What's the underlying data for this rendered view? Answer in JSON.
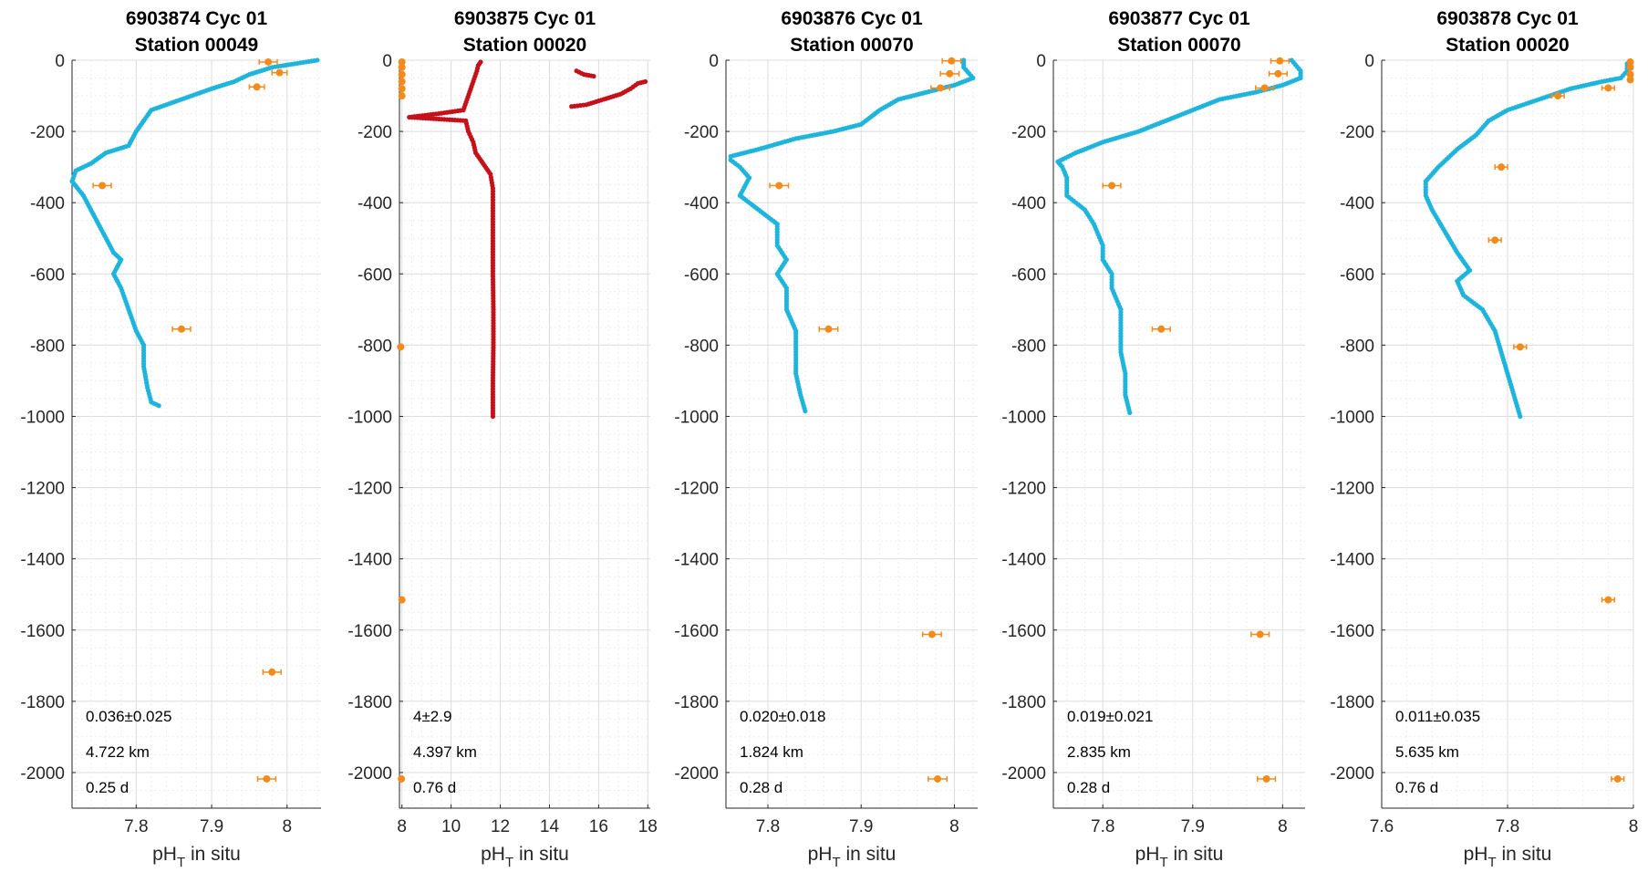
{
  "chart_data": [
    {
      "type": "scatter",
      "title_line1": "6903874 Cyc 01",
      "title_line2": "Station 00049",
      "xlabel_main": "pH",
      "xlabel_sub": "T",
      "xlabel_rest": " in situ",
      "xlim": [
        7.715,
        8.045
      ],
      "ylim": [
        -2100,
        0
      ],
      "xticks": [
        7.8,
        7.9,
        8
      ],
      "xtick_labels": [
        "7.8",
        "7.9",
        "8"
      ],
      "yticks": [
        0,
        -200,
        -400,
        -600,
        -800,
        -1000,
        -1200,
        -1400,
        -1600,
        -1800,
        -2000
      ],
      "ytick_labels": [
        "0",
        "-200",
        "-400",
        "-600",
        "-800",
        "-1000",
        "-1200",
        "-1400",
        "-1600",
        "-1800",
        "-2000"
      ],
      "grid": true,
      "annotations": [
        "0.036±0.025",
        "4.722 km",
        "0.25 d"
      ],
      "profile_color": "#1fb4dc",
      "profile": [
        [
          8.04,
          0
        ],
        [
          8.01,
          -10
        ],
        [
          7.98,
          -20
        ],
        [
          7.95,
          -40
        ],
        [
          7.93,
          -60
        ],
        [
          7.9,
          -80
        ],
        [
          7.86,
          -110
        ],
        [
          7.82,
          -140
        ],
        [
          7.81,
          -170
        ],
        [
          7.8,
          -200
        ],
        [
          7.79,
          -240
        ],
        [
          7.76,
          -260
        ],
        [
          7.74,
          -290
        ],
        [
          7.72,
          -310
        ],
        [
          7.715,
          -340
        ],
        [
          7.73,
          -380
        ],
        [
          7.74,
          -420
        ],
        [
          7.75,
          -460
        ],
        [
          7.76,
          -500
        ],
        [
          7.77,
          -540
        ],
        [
          7.78,
          -560
        ],
        [
          7.77,
          -600
        ],
        [
          7.78,
          -640
        ],
        [
          7.79,
          -700
        ],
        [
          7.8,
          -760
        ],
        [
          7.81,
          -800
        ],
        [
          7.81,
          -860
        ],
        [
          7.815,
          -920
        ],
        [
          7.82,
          -960
        ],
        [
          7.83,
          -970
        ]
      ],
      "bottle_color": "#f38b1c",
      "bottles": [
        {
          "x": 7.975,
          "y": -5,
          "err": 0.012
        },
        {
          "x": 7.99,
          "y": -35,
          "err": 0.01
        },
        {
          "x": 7.96,
          "y": -75,
          "err": 0.01
        },
        {
          "x": 7.755,
          "y": -352,
          "err": 0.012
        },
        {
          "x": 7.86,
          "y": -755,
          "err": 0.012
        },
        {
          "x": 7.98,
          "y": -1718,
          "err": 0.012
        },
        {
          "x": 7.973,
          "y": -2018,
          "err": 0.012
        }
      ]
    },
    {
      "type": "scatter",
      "title_line1": "6903875 Cyc 01",
      "title_line2": "Station 00020",
      "xlabel_main": "pH",
      "xlabel_sub": "T",
      "xlabel_rest": " in situ",
      "xlim": [
        7.9,
        18.1
      ],
      "ylim": [
        -2100,
        0
      ],
      "xticks": [
        8,
        10,
        12,
        14,
        16,
        18
      ],
      "xtick_labels": [
        "8",
        "10",
        "12",
        "14",
        "16",
        "18"
      ],
      "yticks": [
        0,
        -200,
        -400,
        -600,
        -800,
        -1000,
        -1200,
        -1400,
        -1600,
        -1800,
        -2000
      ],
      "ytick_labels": [
        "0",
        "-200",
        "-400",
        "-600",
        "-800",
        "-1000",
        "-1200",
        "-1400",
        "-1600",
        "-1800",
        "-2000"
      ],
      "grid": true,
      "annotations": [
        "4±2.9",
        "4.397 km",
        "0.76 d"
      ],
      "profile_color": "#c4111a",
      "profile": [
        [
          11.2,
          -5
        ],
        [
          11.1,
          -15
        ],
        [
          11.05,
          -30
        ],
        [
          10.5,
          -140
        ],
        [
          9.5,
          -150
        ],
        [
          8.3,
          -160
        ],
        [
          10.6,
          -170
        ],
        [
          10.7,
          -200
        ],
        [
          10.9,
          -230
        ],
        [
          11.0,
          -260
        ],
        [
          11.3,
          -290
        ],
        [
          11.6,
          -320
        ],
        [
          11.7,
          -360
        ],
        [
          11.7,
          -400
        ],
        [
          11.7,
          -500
        ],
        [
          11.7,
          -600
        ],
        [
          11.72,
          -700
        ],
        [
          11.72,
          -800
        ],
        [
          11.7,
          -900
        ],
        [
          11.7,
          -1000
        ]
      ],
      "profile_b": [
        [
          14.9,
          -130
        ],
        [
          15.5,
          -125
        ],
        [
          16.2,
          -110
        ],
        [
          16.9,
          -95
        ],
        [
          17.3,
          -80
        ],
        [
          17.6,
          -65
        ],
        [
          17.9,
          -60
        ]
      ],
      "profile_c": [
        [
          15.1,
          -30
        ],
        [
          15.4,
          -40
        ],
        [
          15.8,
          -45
        ]
      ],
      "bottle_color": "#f38b1c",
      "bottles": [
        {
          "x": 8.0,
          "y": -5,
          "err": 0
        },
        {
          "x": 8.0,
          "y": -20,
          "err": 0
        },
        {
          "x": 8.0,
          "y": -40,
          "err": 0
        },
        {
          "x": 8.0,
          "y": -60,
          "err": 0
        },
        {
          "x": 8.0,
          "y": -80,
          "err": 0
        },
        {
          "x": 8.0,
          "y": -100,
          "err": 0
        },
        {
          "x": 7.95,
          "y": -805,
          "err": 0
        },
        {
          "x": 8.0,
          "y": -1515,
          "err": 0
        },
        {
          "x": 7.98,
          "y": -2018,
          "err": 0
        }
      ]
    },
    {
      "type": "scatter",
      "title_line1": "6903876 Cyc 01",
      "title_line2": "Station 00070",
      "xlabel_main": "pH",
      "xlabel_sub": "T",
      "xlabel_rest": " in situ",
      "xlim": [
        7.755,
        8.025
      ],
      "ylim": [
        -2100,
        0
      ],
      "xticks": [
        7.8,
        7.9,
        8
      ],
      "xtick_labels": [
        "7.8",
        "7.9",
        "8"
      ],
      "yticks": [
        0,
        -200,
        -400,
        -600,
        -800,
        -1000,
        -1200,
        -1400,
        -1600,
        -1800,
        -2000
      ],
      "ytick_labels": [
        "0",
        "-200",
        "-400",
        "-600",
        "-800",
        "-1000",
        "-1200",
        "-1400",
        "-1600",
        "-1800",
        "-2000"
      ],
      "grid": true,
      "annotations": [
        "0.020±0.018",
        "1.824 km",
        "0.28 d"
      ],
      "profile_color": "#1fb4dc",
      "profile": [
        [
          8.01,
          0
        ],
        [
          8.01,
          -20
        ],
        [
          8.02,
          -50
        ],
        [
          8.0,
          -70
        ],
        [
          7.97,
          -90
        ],
        [
          7.94,
          -110
        ],
        [
          7.92,
          -140
        ],
        [
          7.9,
          -180
        ],
        [
          7.87,
          -200
        ],
        [
          7.83,
          -220
        ],
        [
          7.79,
          -250
        ],
        [
          7.76,
          -270
        ],
        [
          7.76,
          -280
        ],
        [
          7.77,
          -300
        ],
        [
          7.78,
          -330
        ],
        [
          7.77,
          -380
        ],
        [
          7.79,
          -420
        ],
        [
          7.81,
          -460
        ],
        [
          7.81,
          -520
        ],
        [
          7.82,
          -560
        ],
        [
          7.81,
          -600
        ],
        [
          7.82,
          -640
        ],
        [
          7.82,
          -700
        ],
        [
          7.83,
          -760
        ],
        [
          7.83,
          -820
        ],
        [
          7.83,
          -880
        ],
        [
          7.835,
          -940
        ],
        [
          7.84,
          -985
        ]
      ],
      "bottle_color": "#f38b1c",
      "bottles": [
        {
          "x": 7.997,
          "y": -2,
          "err": 0.01
        },
        {
          "x": 7.995,
          "y": -38,
          "err": 0.01
        },
        {
          "x": 7.985,
          "y": -78,
          "err": 0.01
        },
        {
          "x": 7.812,
          "y": -352,
          "err": 0.01
        },
        {
          "x": 7.865,
          "y": -755,
          "err": 0.01
        },
        {
          "x": 7.976,
          "y": -1612,
          "err": 0.01
        },
        {
          "x": 7.982,
          "y": -2018,
          "err": 0.01
        }
      ]
    },
    {
      "type": "scatter",
      "title_line1": "6903877 Cyc 01",
      "title_line2": "Station 00070",
      "xlabel_main": "pH",
      "xlabel_sub": "T",
      "xlabel_rest": " in situ",
      "xlim": [
        7.745,
        8.025
      ],
      "ylim": [
        -2100,
        0
      ],
      "xticks": [
        7.8,
        7.9,
        8
      ],
      "xtick_labels": [
        "7.8",
        "7.9",
        "8"
      ],
      "yticks": [
        0,
        -200,
        -400,
        -600,
        -800,
        -1000,
        -1200,
        -1400,
        -1600,
        -1800,
        -2000
      ],
      "ytick_labels": [
        "0",
        "-200",
        "-400",
        "-600",
        "-800",
        "-1000",
        "-1200",
        "-1400",
        "-1600",
        "-1800",
        "-2000"
      ],
      "grid": true,
      "annotations": [
        "0.019±0.021",
        "2.835 km",
        "0.28 d"
      ],
      "profile_color": "#1fb4dc",
      "profile": [
        [
          8.01,
          0
        ],
        [
          8.02,
          -30
        ],
        [
          8.02,
          -50
        ],
        [
          8.0,
          -70
        ],
        [
          7.97,
          -90
        ],
        [
          7.93,
          -110
        ],
        [
          7.9,
          -140
        ],
        [
          7.87,
          -170
        ],
        [
          7.84,
          -200
        ],
        [
          7.8,
          -230
        ],
        [
          7.77,
          -260
        ],
        [
          7.75,
          -285
        ],
        [
          7.755,
          -300
        ],
        [
          7.76,
          -330
        ],
        [
          7.76,
          -380
        ],
        [
          7.78,
          -420
        ],
        [
          7.79,
          -460
        ],
        [
          7.8,
          -520
        ],
        [
          7.8,
          -560
        ],
        [
          7.81,
          -600
        ],
        [
          7.81,
          -640
        ],
        [
          7.82,
          -700
        ],
        [
          7.82,
          -760
        ],
        [
          7.82,
          -820
        ],
        [
          7.825,
          -880
        ],
        [
          7.825,
          -940
        ],
        [
          7.83,
          -990
        ]
      ],
      "bottle_color": "#f38b1c",
      "bottles": [
        {
          "x": 7.997,
          "y": -2,
          "err": 0.01
        },
        {
          "x": 7.995,
          "y": -38,
          "err": 0.01
        },
        {
          "x": 7.98,
          "y": -78,
          "err": 0.01
        },
        {
          "x": 7.81,
          "y": -352,
          "err": 0.01
        },
        {
          "x": 7.865,
          "y": -755,
          "err": 0.01
        },
        {
          "x": 7.975,
          "y": -1612,
          "err": 0.01
        },
        {
          "x": 7.982,
          "y": -2018,
          "err": 0.01
        }
      ]
    },
    {
      "type": "scatter",
      "title_line1": "6903878 Cyc 01",
      "title_line2": "Station 00020",
      "xlabel_main": "pH",
      "xlabel_sub": "T",
      "xlabel_rest": " in situ",
      "xlim": [
        7.6,
        8.0
      ],
      "ylim": [
        -2100,
        0
      ],
      "xticks": [
        7.6,
        7.8,
        8
      ],
      "xtick_labels": [
        "7.6",
        "7.8",
        "8"
      ],
      "yticks": [
        0,
        -200,
        -400,
        -600,
        -800,
        -1000,
        -1200,
        -1400,
        -1600,
        -1800,
        -2000
      ],
      "ytick_labels": [
        "0",
        "-200",
        "-400",
        "-600",
        "-800",
        "-1000",
        "-1200",
        "-1400",
        "-1600",
        "-1800",
        "-2000"
      ],
      "grid": true,
      "annotations": [
        "0.011±0.035",
        "5.635 km",
        "0.76 d"
      ],
      "profile_color": "#1fb4dc",
      "profile": [
        [
          7.99,
          -10
        ],
        [
          7.99,
          -30
        ],
        [
          7.98,
          -50
        ],
        [
          7.95,
          -60
        ],
        [
          7.9,
          -80
        ],
        [
          7.85,
          -110
        ],
        [
          7.8,
          -140
        ],
        [
          7.77,
          -170
        ],
        [
          7.75,
          -210
        ],
        [
          7.72,
          -250
        ],
        [
          7.69,
          -300
        ],
        [
          7.67,
          -340
        ],
        [
          7.67,
          -380
        ],
        [
          7.68,
          -420
        ],
        [
          7.7,
          -480
        ],
        [
          7.72,
          -540
        ],
        [
          7.74,
          -590
        ],
        [
          7.72,
          -620
        ],
        [
          7.73,
          -660
        ],
        [
          7.76,
          -700
        ],
        [
          7.78,
          -760
        ],
        [
          7.79,
          -820
        ],
        [
          7.8,
          -880
        ],
        [
          7.81,
          -940
        ],
        [
          7.82,
          -1000
        ]
      ],
      "bottle_color": "#f38b1c",
      "bottles": [
        {
          "x": 7.995,
          "y": -5,
          "err": 0
        },
        {
          "x": 7.995,
          "y": -20,
          "err": 0
        },
        {
          "x": 7.995,
          "y": -40,
          "err": 0
        },
        {
          "x": 7.995,
          "y": -55,
          "err": 0
        },
        {
          "x": 7.96,
          "y": -78,
          "err": 0.01
        },
        {
          "x": 7.88,
          "y": -100,
          "err": 0.01
        },
        {
          "x": 7.79,
          "y": -300,
          "err": 0.01
        },
        {
          "x": 7.78,
          "y": -505,
          "err": 0.01
        },
        {
          "x": 7.82,
          "y": -805,
          "err": 0.01
        },
        {
          "x": 7.96,
          "y": -1515,
          "err": 0.01
        },
        {
          "x": 7.975,
          "y": -2018,
          "err": 0.01
        }
      ]
    }
  ]
}
